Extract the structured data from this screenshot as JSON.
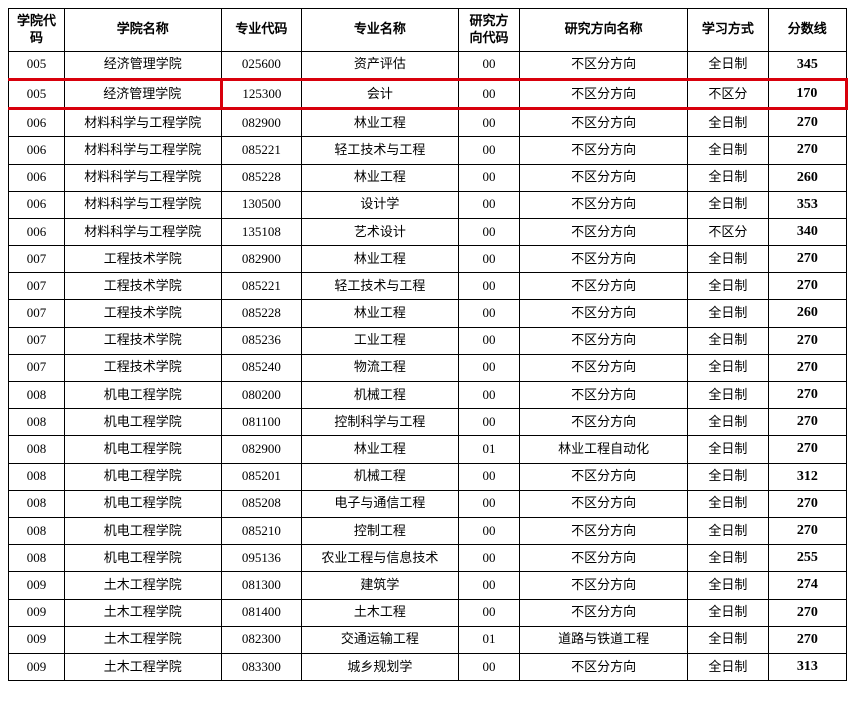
{
  "table": {
    "highlight_row_index": 1,
    "highlight_color": "#d8000c",
    "columns": [
      "学院代码",
      "学院名称",
      "专业代码",
      "专业名称",
      "研究方向代码",
      "研究方向名称",
      "学习方式",
      "分数线"
    ],
    "rows": [
      [
        "005",
        "经济管理学院",
        "025600",
        "资产评估",
        "00",
        "不区分方向",
        "全日制",
        "345"
      ],
      [
        "005",
        "经济管理学院",
        "125300",
        "会计",
        "00",
        "不区分方向",
        "不区分",
        "170"
      ],
      [
        "006",
        "材料科学与工程学院",
        "082900",
        "林业工程",
        "00",
        "不区分方向",
        "全日制",
        "270"
      ],
      [
        "006",
        "材料科学与工程学院",
        "085221",
        "轻工技术与工程",
        "00",
        "不区分方向",
        "全日制",
        "270"
      ],
      [
        "006",
        "材料科学与工程学院",
        "085228",
        "林业工程",
        "00",
        "不区分方向",
        "全日制",
        "260"
      ],
      [
        "006",
        "材料科学与工程学院",
        "130500",
        "设计学",
        "00",
        "不区分方向",
        "全日制",
        "353"
      ],
      [
        "006",
        "材料科学与工程学院",
        "135108",
        "艺术设计",
        "00",
        "不区分方向",
        "不区分",
        "340"
      ],
      [
        "007",
        "工程技术学院",
        "082900",
        "林业工程",
        "00",
        "不区分方向",
        "全日制",
        "270"
      ],
      [
        "007",
        "工程技术学院",
        "085221",
        "轻工技术与工程",
        "00",
        "不区分方向",
        "全日制",
        "270"
      ],
      [
        "007",
        "工程技术学院",
        "085228",
        "林业工程",
        "00",
        "不区分方向",
        "全日制",
        "260"
      ],
      [
        "007",
        "工程技术学院",
        "085236",
        "工业工程",
        "00",
        "不区分方向",
        "全日制",
        "270"
      ],
      [
        "007",
        "工程技术学院",
        "085240",
        "物流工程",
        "00",
        "不区分方向",
        "全日制",
        "270"
      ],
      [
        "008",
        "机电工程学院",
        "080200",
        "机械工程",
        "00",
        "不区分方向",
        "全日制",
        "270"
      ],
      [
        "008",
        "机电工程学院",
        "081100",
        "控制科学与工程",
        "00",
        "不区分方向",
        "全日制",
        "270"
      ],
      [
        "008",
        "机电工程学院",
        "082900",
        "林业工程",
        "01",
        "林业工程自动化",
        "全日制",
        "270"
      ],
      [
        "008",
        "机电工程学院",
        "085201",
        "机械工程",
        "00",
        "不区分方向",
        "全日制",
        "312"
      ],
      [
        "008",
        "机电工程学院",
        "085208",
        "电子与通信工程",
        "00",
        "不区分方向",
        "全日制",
        "270"
      ],
      [
        "008",
        "机电工程学院",
        "085210",
        "控制工程",
        "00",
        "不区分方向",
        "全日制",
        "270"
      ],
      [
        "008",
        "机电工程学院",
        "095136",
        "农业工程与信息技术",
        "00",
        "不区分方向",
        "全日制",
        "255"
      ],
      [
        "009",
        "土木工程学院",
        "081300",
        "建筑学",
        "00",
        "不区分方向",
        "全日制",
        "274"
      ],
      [
        "009",
        "土木工程学院",
        "081400",
        "土木工程",
        "00",
        "不区分方向",
        "全日制",
        "270"
      ],
      [
        "009",
        "土木工程学院",
        "082300",
        "交通运输工程",
        "01",
        "道路与铁道工程",
        "全日制",
        "270"
      ],
      [
        "009",
        "土木工程学院",
        "083300",
        "城乡规划学",
        "00",
        "不区分方向",
        "全日制",
        "313"
      ]
    ]
  }
}
